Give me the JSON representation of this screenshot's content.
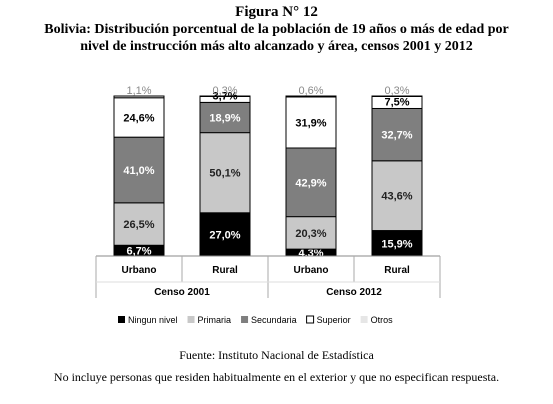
{
  "header": {
    "title": "Figura N° 12",
    "subtitle_line1": "Bolivia: Distribución porcentual de la población de 19 años o más de edad por",
    "subtitle_line2": "nivel de instrucción más alto alcanzado y área, censos 2001 y 2012"
  },
  "chart_data": {
    "type": "bar",
    "stacked": true,
    "percent": true,
    "ylim": [
      0,
      100
    ],
    "grid": false,
    "legend_position": "bottom",
    "groups": [
      "Censo 2001",
      "Censo 2012"
    ],
    "categories": [
      "Urbano",
      "Rural",
      "Urbano",
      "Rural"
    ],
    "category_group": [
      0,
      0,
      1,
      1
    ],
    "series": [
      {
        "name": "Ningun nivel",
        "color": "#000000",
        "label_color": "#ffffff",
        "values": [
          6.7,
          27.0,
          4.3,
          15.9
        ],
        "labels": [
          "6,7%",
          "27,0%",
          "4,3%",
          "15,9%"
        ]
      },
      {
        "name": "Primaria",
        "color": "#c8c8c8",
        "label_color": "#222222",
        "values": [
          26.5,
          50.1,
          20.3,
          43.6
        ],
        "labels": [
          "26,5%",
          "50,1%",
          "20,3%",
          "43,6%"
        ]
      },
      {
        "name": "Secundaria",
        "color": "#7f7f7f",
        "label_color": "#ffffff",
        "values": [
          41.0,
          18.9,
          42.9,
          32.7
        ],
        "labels": [
          "41,0%",
          "18,9%",
          "42,9%",
          "32,7%"
        ]
      },
      {
        "name": "Superior",
        "color": "#ffffff",
        "label_color": "#000000",
        "values": [
          24.6,
          3.7,
          31.9,
          7.5
        ],
        "labels": [
          "24,6%",
          "3,7%",
          "31,9%",
          "7,5%"
        ]
      },
      {
        "name": "Otros",
        "color": "#e6e6e6",
        "label_color": "#555555",
        "values": [
          1.1,
          0.3,
          0.6,
          0.3
        ],
        "labels": [
          "1,1%",
          "0,3%",
          "0,6%",
          "0,3%"
        ]
      }
    ]
  },
  "footer": {
    "source": "Fuente: Instituto Nacional de Estadística",
    "note": "No incluye personas que residen habitualmente en el exterior y que no especifican respuesta."
  }
}
